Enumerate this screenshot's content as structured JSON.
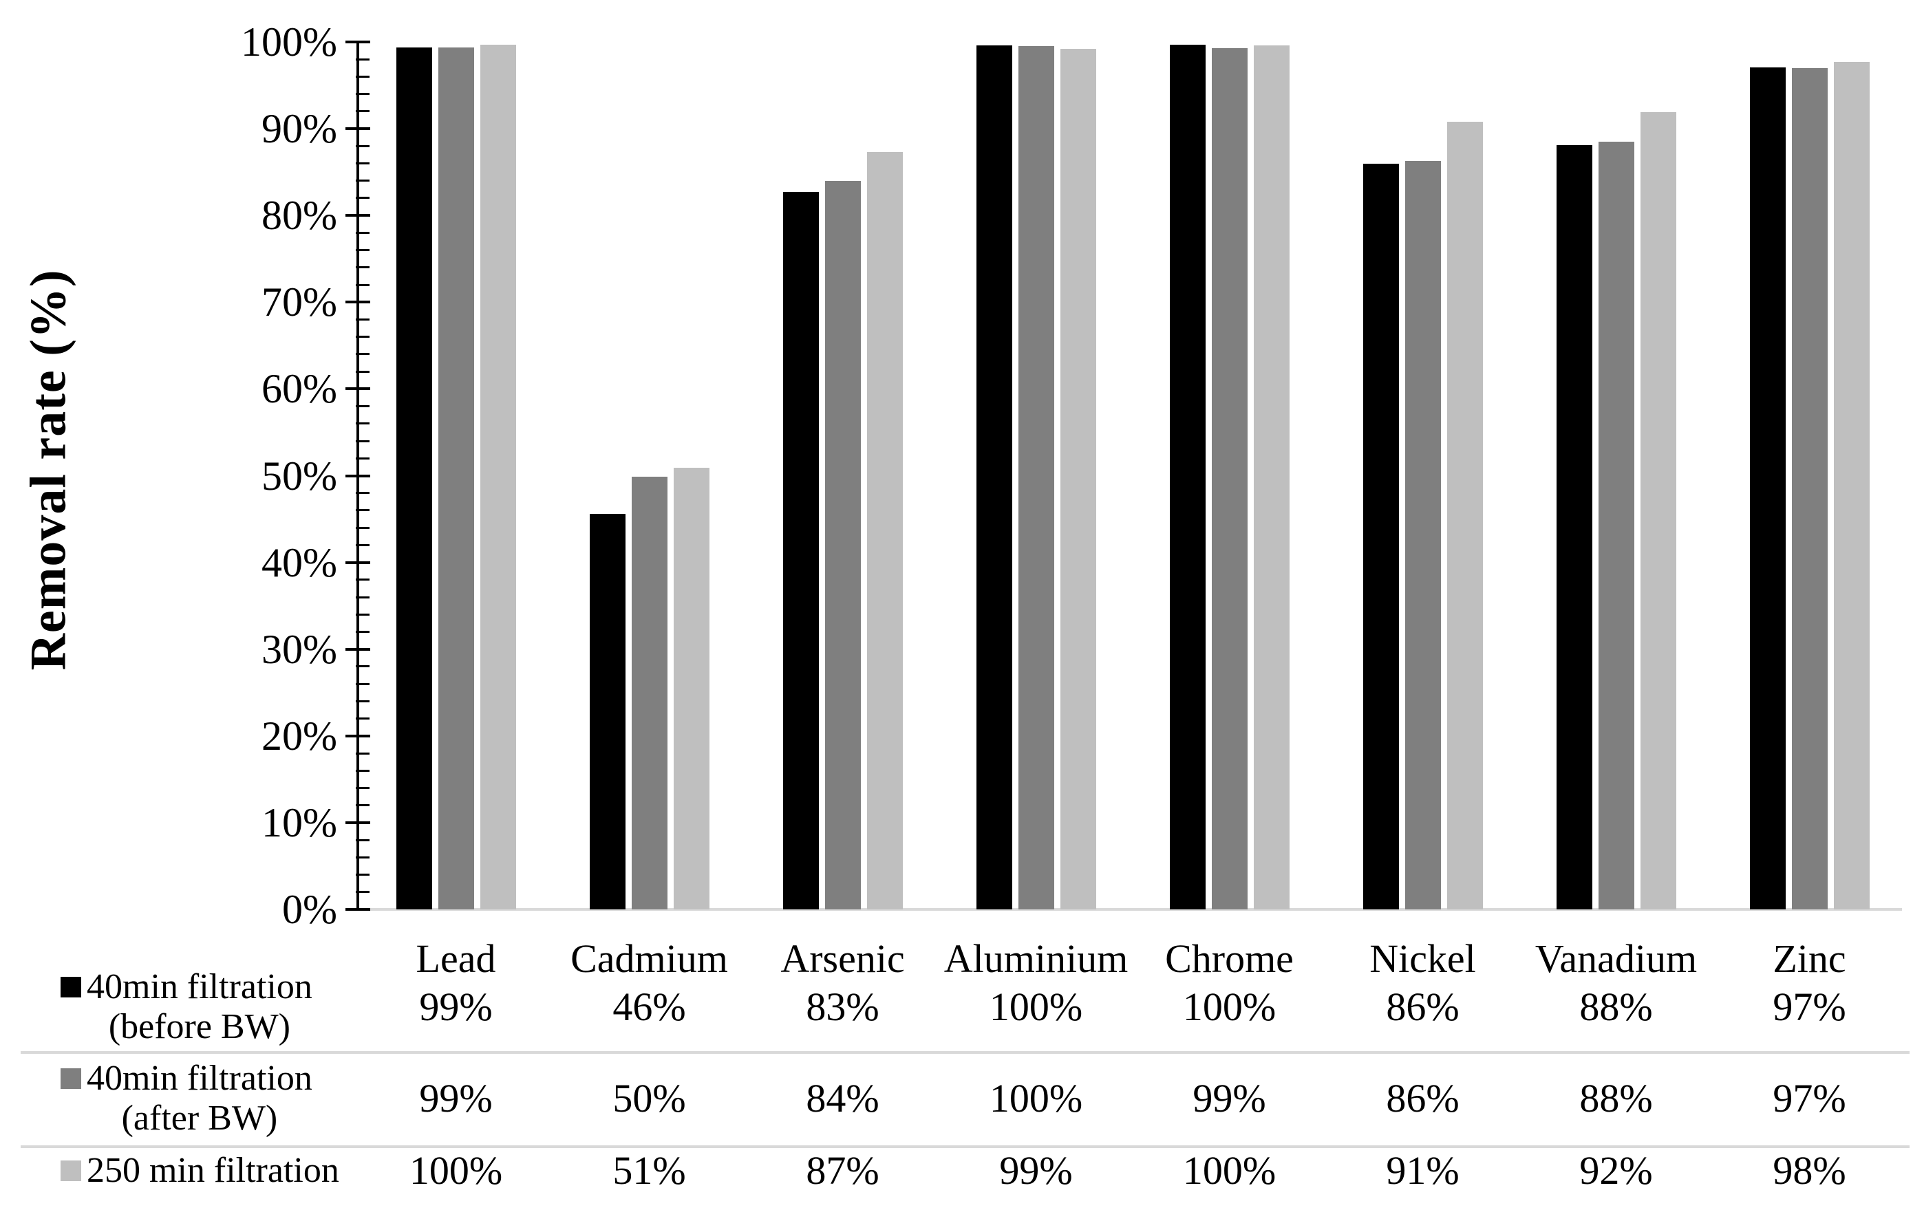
{
  "chart_data": {
    "type": "bar",
    "title": "",
    "xlabel": "",
    "ylabel": "Removal rate (%)",
    "ylim": [
      0,
      100
    ],
    "y_tick_step": 10,
    "y_minor_tick_step": 2,
    "y_tick_labels": [
      "0%",
      "10%",
      "20%",
      "30%",
      "40%",
      "50%",
      "60%",
      "70%",
      "80%",
      "90%",
      "100%"
    ],
    "grid": false,
    "legend_position": "table-left-below",
    "categories": [
      "Lead",
      "Cadmium",
      "Arsenic",
      "Aluminium",
      "Chrome",
      "Nickel",
      "Vanadium",
      "Zinc"
    ],
    "series": [
      {
        "name": "40min filtration (before BW)",
        "label_line1": "40min filtration",
        "label_line2": "(before BW)",
        "color": "#000000",
        "values": [
          99,
          46,
          83,
          100,
          100,
          86,
          88,
          97
        ],
        "plotted_values": [
          99.4,
          45.6,
          82.7,
          99.6,
          99.7,
          86.0,
          88.1,
          97.1
        ],
        "display_values": [
          "99%",
          "46%",
          "83%",
          "100%",
          "100%",
          "86%",
          "88%",
          "97%"
        ]
      },
      {
        "name": "40min filtration (after BW)",
        "label_line1": "40min filtration",
        "label_line2": "(after BW)",
        "color": "#7f7f7f",
        "values": [
          99,
          50,
          84,
          100,
          99,
          86,
          88,
          97
        ],
        "plotted_values": [
          99.4,
          49.9,
          84.0,
          99.5,
          99.3,
          86.3,
          88.5,
          97.0
        ],
        "display_values": [
          "99%",
          "50%",
          "84%",
          "100%",
          "99%",
          "86%",
          "88%",
          "97%"
        ]
      },
      {
        "name": "250 min filtration",
        "label_line1": "250 min filtration",
        "label_line2": "",
        "color": "#bfbfbf",
        "values": [
          100,
          51,
          87,
          99,
          100,
          91,
          92,
          98
        ],
        "plotted_values": [
          99.7,
          50.9,
          87.3,
          99.2,
          99.6,
          90.8,
          91.9,
          97.7
        ],
        "display_values": [
          "100%",
          "51%",
          "87%",
          "99%",
          "100%",
          "91%",
          "92%",
          "98%"
        ]
      }
    ]
  },
  "colors": {
    "axis": "#000000",
    "baseline": "#d9d9d9",
    "separator": "#d9d9d9",
    "text": "#000000",
    "background": "#ffffff"
  }
}
